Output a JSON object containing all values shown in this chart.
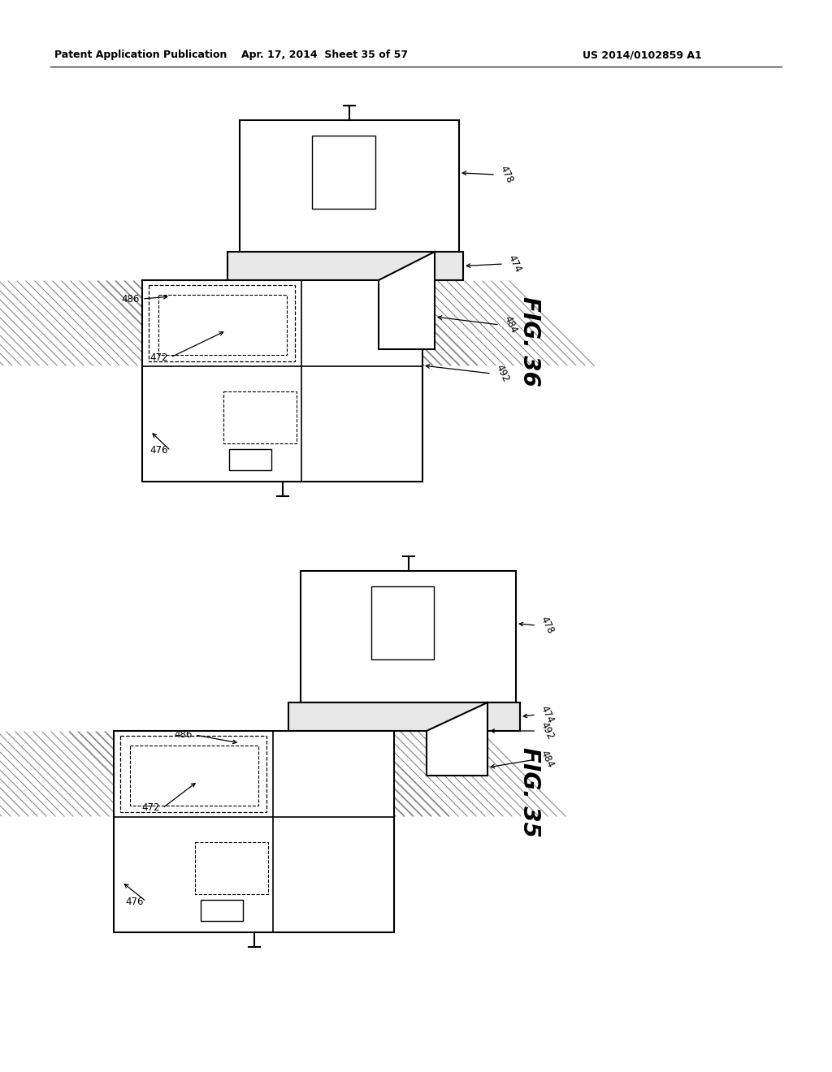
{
  "bg_color": "#ffffff",
  "line_color": "#000000",
  "header_text": "Patent Application Publication",
  "header_date": "Apr. 17, 2014  Sheet 35 of 57",
  "header_patent": "US 2014/0102859 A1",
  "fig36_label": "FIG. 36",
  "fig35_label": "FIG. 35"
}
